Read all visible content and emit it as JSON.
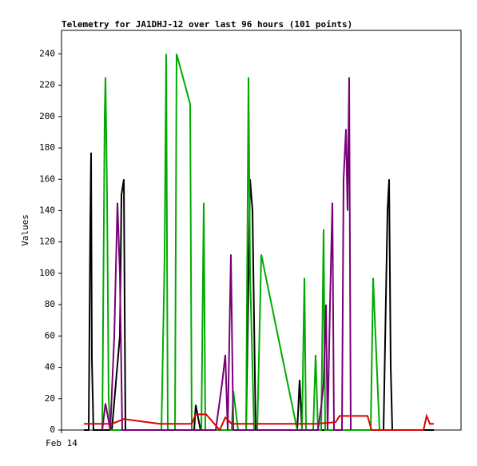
{
  "chart_data": {
    "type": "line",
    "title": "Telemetry for JA1DHJ-12 over last 96 hours (101 points)",
    "y_label": "Values",
    "xlim": [
      0,
      100
    ],
    "xticks": [
      {
        "value": 0,
        "label": "Feb 14"
      }
    ],
    "ylim": [
      0,
      255
    ],
    "yticks": [
      0,
      20,
      40,
      60,
      80,
      100,
      120,
      140,
      160,
      180,
      200,
      220,
      240
    ],
    "series": [
      {
        "color": "#000000",
        "x": [
          5.6,
          6.8,
          7.2,
          7.4,
          7.6,
          8,
          12.6,
          13.6,
          14.6,
          15,
          15.6,
          16,
          33.2,
          33.6,
          34.4,
          34.8,
          46.2,
          47.2,
          47.8,
          48.6,
          59,
          59.6,
          60.2,
          80.6,
          81.6,
          82,
          82.4,
          82.8,
          93.2
        ],
        "values": [
          0,
          0,
          132,
          177,
          45,
          0,
          0,
          30,
          60,
          150,
          160,
          0,
          0,
          16,
          5,
          0,
          0,
          160,
          140,
          0,
          0,
          32,
          0,
          0,
          140,
          160,
          40,
          0,
          0
        ]
      },
      {
        "color": "#00aa00",
        "x": [
          10.2,
          10.8,
          11,
          11.4,
          11.8,
          12.2,
          25,
          25.8,
          26.2,
          26.6,
          28.4,
          28.8,
          32.2,
          32.6,
          35,
          35.6,
          36,
          42.6,
          43,
          44.2,
          46.2,
          46.8,
          47.2,
          48.2,
          49,
          50,
          59,
          60.2,
          60.8,
          61.2,
          63,
          63.6,
          64.2,
          65,
          65.6,
          66,
          77.4,
          78,
          78.6,
          79.6,
          81
        ],
        "values": [
          0,
          200,
          225,
          150,
          20,
          0,
          0,
          110,
          240,
          0,
          0,
          240,
          208,
          0,
          0,
          145,
          0,
          0,
          25,
          0,
          0,
          225,
          100,
          0,
          0,
          112,
          0,
          0,
          97,
          0,
          0,
          48,
          0,
          0,
          128,
          0,
          0,
          97,
          60,
          0,
          0
        ]
      },
      {
        "color": "#770077",
        "x": [
          10.2,
          11,
          12.2,
          13.2,
          14,
          14.6,
          15.2,
          38.6,
          40.2,
          41,
          41.6,
          42.4,
          43,
          64.2,
          65,
          65.6,
          66.2,
          66.6,
          67.2,
          67.8,
          68.2,
          70.2,
          70.6,
          71.2,
          71.6,
          72,
          72.4
        ],
        "values": [
          0,
          17,
          0,
          60,
          145,
          100,
          0,
          0,
          30,
          48,
          0,
          112,
          0,
          0,
          15,
          30,
          80,
          0,
          80,
          145,
          0,
          0,
          160,
          192,
          140,
          225,
          0
        ]
      },
      {
        "color": "#dd0000",
        "x": [
          5.6,
          12.6,
          15.6,
          24.6,
          32.6,
          33.6,
          36.2,
          39.6,
          41,
          42.6,
          63.6,
          68.6,
          69.6,
          72.6,
          76.6,
          77.6,
          90.6,
          91.4,
          92.2,
          93.2
        ],
        "values": [
          4,
          4,
          7,
          4,
          4,
          10,
          10,
          0,
          8,
          4,
          4,
          5,
          9,
          9,
          9,
          0,
          0,
          9,
          4,
          4
        ]
      }
    ]
  }
}
